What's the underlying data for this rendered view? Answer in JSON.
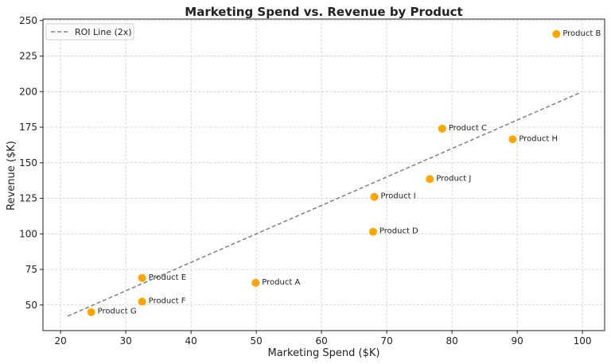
{
  "chart_data": {
    "type": "scatter",
    "title": "Marketing Spend vs. Revenue by Product",
    "xlabel": "Marketing Spend ($K)",
    "ylabel": "Revenue ($K)",
    "xlim": [
      17.3,
      103.4
    ],
    "ylim": [
      32,
      251
    ],
    "xticks": [
      20,
      30,
      40,
      50,
      60,
      70,
      80,
      90,
      100
    ],
    "yticks": [
      50,
      75,
      100,
      125,
      150,
      175,
      200,
      225,
      250
    ],
    "grid": true,
    "legend": {
      "position": "top-left",
      "entries": [
        "ROI Line (2x)"
      ]
    },
    "point_color": "#FFA500",
    "line_color": "#808080",
    "points": [
      {
        "label": "Product A",
        "x": 49.9,
        "y": 65.6
      },
      {
        "label": "Product B",
        "x": 96.0,
        "y": 240.5
      },
      {
        "label": "Product C",
        "x": 78.5,
        "y": 174
      },
      {
        "label": "Product D",
        "x": 67.9,
        "y": 101.5
      },
      {
        "label": "Product E",
        "x": 32.5,
        "y": 69
      },
      {
        "label": "Product F",
        "x": 32.5,
        "y": 52.4
      },
      {
        "label": "Product G",
        "x": 24.7,
        "y": 45
      },
      {
        "label": "Product H",
        "x": 89.3,
        "y": 166.5
      },
      {
        "label": "Product I",
        "x": 68.1,
        "y": 126
      },
      {
        "label": "Product J",
        "x": 76.6,
        "y": 138.5
      }
    ],
    "roi_line": {
      "name": "ROI Line (2x)",
      "x": [
        21.1,
        99.5
      ],
      "y": [
        42.2,
        199
      ]
    }
  }
}
